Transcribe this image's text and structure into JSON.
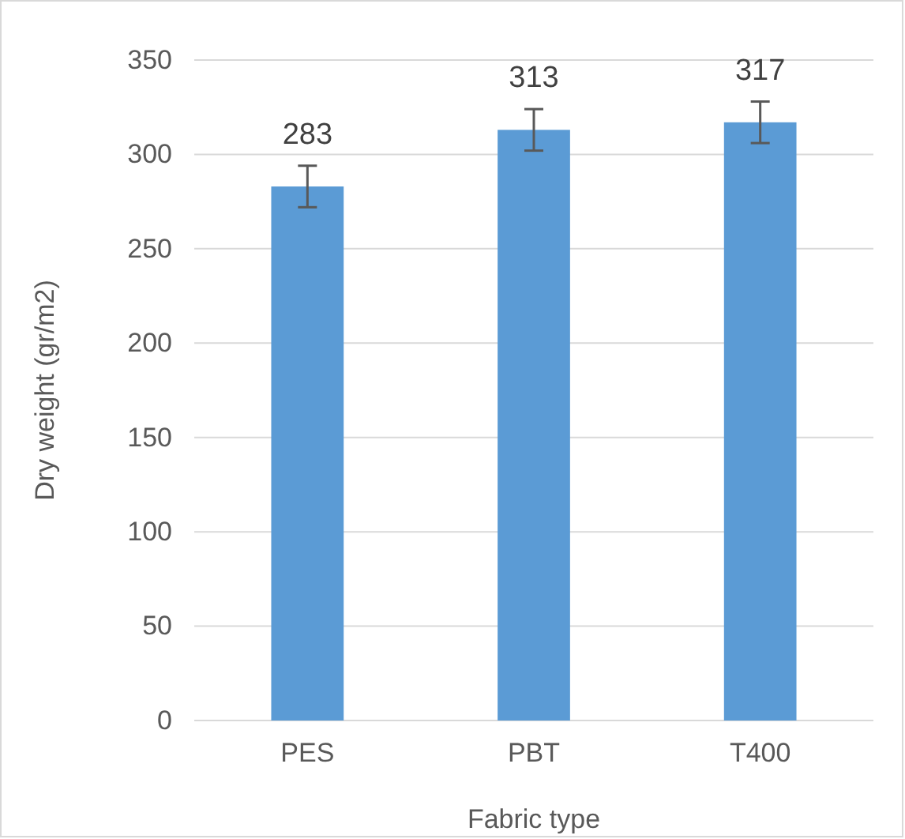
{
  "chart_data": {
    "type": "bar",
    "categories": [
      "PES",
      "PBT",
      "T400"
    ],
    "values": [
      283,
      313,
      317
    ],
    "errors": [
      11,
      11,
      11
    ],
    "color": "#5b9bd5",
    "data_labels": true,
    "xlabel": "Fabric type",
    "ylabel": "Dry weight (gr/m2)",
    "ylim": [
      0,
      350
    ],
    "yticks": [
      0,
      50,
      100,
      150,
      200,
      250,
      300,
      350
    ],
    "grid": "y"
  }
}
